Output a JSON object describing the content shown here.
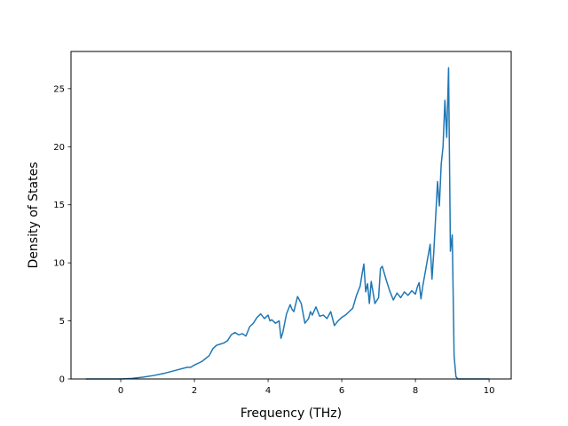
{
  "chart_data": {
    "type": "line",
    "title": "",
    "xlabel": "Frequency (THz)",
    "ylabel": "Density of States",
    "xlim": [
      -1.35,
      10.6
    ],
    "ylim": [
      0,
      28.2
    ],
    "xticks": [
      0,
      2,
      4,
      6,
      8,
      10
    ],
    "yticks": [
      0,
      5,
      10,
      15,
      20,
      25
    ],
    "grid": false,
    "legend": "none",
    "color": "#1f77b4",
    "series": [
      {
        "x": [
          -0.95,
          -0.5,
          0,
          0.3,
          0.6,
          0.9,
          1.2,
          1.5,
          1.8,
          1.9,
          2.0,
          2.2,
          2.4,
          2.5,
          2.6,
          2.7,
          2.8,
          2.9,
          3.0,
          3.1,
          3.2,
          3.3,
          3.4,
          3.5,
          3.6,
          3.7,
          3.8,
          3.9,
          4.0,
          4.05,
          4.1,
          4.2,
          4.3,
          4.35,
          4.4,
          4.5,
          4.6,
          4.65,
          4.7,
          4.8,
          4.9,
          5.0,
          5.1,
          5.15,
          5.2,
          5.3,
          5.4,
          5.5,
          5.6,
          5.7,
          5.8,
          5.9,
          6.0,
          6.1,
          6.2,
          6.3,
          6.4,
          6.5,
          6.55,
          6.6,
          6.65,
          6.7,
          6.75,
          6.8,
          6.9,
          7.0,
          7.05,
          7.1,
          7.2,
          7.3,
          7.35,
          7.4,
          7.5,
          7.6,
          7.7,
          7.8,
          7.9,
          8.0,
          8.05,
          8.1,
          8.15,
          8.2,
          8.3,
          8.4,
          8.45,
          8.5,
          8.6,
          8.65,
          8.7,
          8.75,
          8.8,
          8.85,
          8.9,
          8.95,
          9.0,
          9.05,
          9.1,
          9.15,
          10.0
        ],
        "y": [
          0,
          0,
          0,
          0.05,
          0.15,
          0.3,
          0.5,
          0.75,
          1.0,
          1.0,
          1.2,
          1.5,
          2.0,
          2.6,
          2.9,
          3.0,
          3.1,
          3.3,
          3.8,
          4.0,
          3.8,
          3.9,
          3.7,
          4.5,
          4.8,
          5.3,
          5.6,
          5.2,
          5.5,
          5.0,
          5.1,
          4.8,
          5.0,
          3.5,
          4.0,
          5.6,
          6.4,
          6.0,
          5.8,
          7.1,
          6.5,
          4.8,
          5.2,
          5.8,
          5.5,
          6.2,
          5.4,
          5.5,
          5.2,
          5.8,
          4.6,
          5.0,
          5.3,
          5.5,
          5.8,
          6.1,
          7.2,
          8.0,
          9.0,
          9.9,
          7.5,
          8.2,
          6.5,
          8.4,
          6.5,
          7.0,
          9.5,
          9.7,
          8.6,
          7.6,
          7.2,
          6.8,
          7.4,
          7.0,
          7.5,
          7.2,
          7.6,
          7.3,
          7.9,
          8.3,
          6.9,
          8.0,
          9.8,
          11.6,
          8.6,
          11.0,
          17.0,
          14.9,
          18.5,
          20.0,
          24.0,
          20.8,
          26.8,
          11.0,
          12.4,
          2.0,
          0.2,
          0,
          0
        ]
      }
    ]
  }
}
